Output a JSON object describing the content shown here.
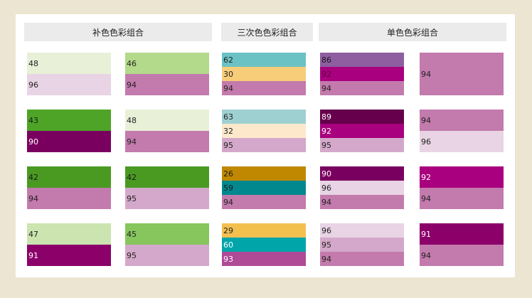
{
  "headers": [
    {
      "label": "补色色彩组合",
      "key": "complementary"
    },
    {
      "label": "三次色色彩组合",
      "key": "tertiary"
    },
    {
      "label": "单色色彩组合",
      "key": "monochrome"
    }
  ],
  "swatch_columns": [
    {
      "key": "c1",
      "rows": [
        [
          {
            "value": "48",
            "color": "#e8f0d8",
            "text": "#222222"
          },
          {
            "value": "96",
            "color": "#e8d4e4",
            "text": "#222222"
          }
        ],
        [
          {
            "value": "43",
            "color": "#4ea427",
            "text": "#1a1a1a"
          },
          {
            "value": "90",
            "color": "#7a0060",
            "text": "#ffffff"
          }
        ],
        [
          {
            "value": "42",
            "color": "#4a9a22",
            "text": "#1a1a1a"
          },
          {
            "value": "94",
            "color": "#c37aac",
            "text": "#222222"
          }
        ],
        [
          {
            "value": "47",
            "color": "#cbe4b0",
            "text": "#222222"
          },
          {
            "value": "91",
            "color": "#8c006a",
            "text": "#ffffff"
          }
        ]
      ]
    },
    {
      "key": "c2",
      "rows": [
        [
          {
            "value": "46",
            "color": "#b3d98a",
            "text": "#222222"
          },
          {
            "value": "94",
            "color": "#c37aac",
            "text": "#222222"
          }
        ],
        [
          {
            "value": "48",
            "color": "#e8f0d8",
            "text": "#222222"
          },
          {
            "value": "94",
            "color": "#c37aac",
            "text": "#222222"
          }
        ],
        [
          {
            "value": "42",
            "color": "#4a9a22",
            "text": "#1a1a1a"
          },
          {
            "value": "95",
            "color": "#d4a8ca",
            "text": "#222222"
          }
        ],
        [
          {
            "value": "45",
            "color": "#86c65c",
            "text": "#222222"
          },
          {
            "value": "95",
            "color": "#d4a8ca",
            "text": "#222222"
          }
        ]
      ]
    },
    {
      "key": "c3",
      "rows": [
        [
          {
            "value": "62",
            "color": "#6bc2c4",
            "text": "#222222"
          },
          {
            "value": "30",
            "color": "#f8cd7a",
            "text": "#222222"
          },
          {
            "value": "94",
            "color": "#c37aac",
            "text": "#222222"
          }
        ],
        [
          {
            "value": "63",
            "color": "#9ed0d2",
            "text": "#222222"
          },
          {
            "value": "32",
            "color": "#fde8cc",
            "text": "#222222"
          },
          {
            "value": "95",
            "color": "#d4a8ca",
            "text": "#222222"
          }
        ],
        [
          {
            "value": "26",
            "color": "#c08800",
            "text": "#1a1a1a"
          },
          {
            "value": "59",
            "color": "#00888e",
            "text": "#1a1a1a"
          },
          {
            "value": "94",
            "color": "#c37aac",
            "text": "#222222"
          }
        ],
        [
          {
            "value": "29",
            "color": "#f3c050",
            "text": "#222222"
          },
          {
            "value": "60",
            "color": "#00a5aa",
            "text": "#ffffff"
          },
          {
            "value": "93",
            "color": "#ae4a96",
            "text": "#ffffff"
          }
        ]
      ]
    },
    {
      "key": "c4",
      "rows": [
        [
          {
            "value": "86",
            "color": "#8e5ea0",
            "text": "#1a1a1a"
          },
          {
            "value": "92",
            "color": "#a8007e",
            "text": "#5a0040"
          },
          {
            "value": "94",
            "color": "#c37aac",
            "text": "#222222"
          }
        ],
        [
          {
            "value": "89",
            "color": "#66004c",
            "text": "#ffffff"
          },
          {
            "value": "92",
            "color": "#a8007e",
            "text": "#ffffff"
          },
          {
            "value": "95",
            "color": "#d4a8ca",
            "text": "#222222"
          }
        ],
        [
          {
            "value": "90",
            "color": "#7a0060",
            "text": "#ffffff"
          },
          {
            "value": "96",
            "color": "#e8d4e4",
            "text": "#222222"
          },
          {
            "value": "94",
            "color": "#c37aac",
            "text": "#222222"
          }
        ],
        [
          {
            "value": "96",
            "color": "#e8d4e4",
            "text": "#222222"
          },
          {
            "value": "95",
            "color": "#d4a8ca",
            "text": "#222222"
          },
          {
            "value": "94",
            "color": "#c37aac",
            "text": "#222222"
          }
        ]
      ]
    },
    {
      "key": "c5",
      "rows": [
        [
          {
            "value": "94",
            "color": "#c37aac",
            "text": "#222222"
          }
        ],
        [
          {
            "value": "94",
            "color": "#c37aac",
            "text": "#222222"
          },
          {
            "value": "96",
            "color": "#e8d4e4",
            "text": "#222222"
          }
        ],
        [
          {
            "value": "92",
            "color": "#a8007e",
            "text": "#ffffff"
          },
          {
            "value": "94",
            "color": "#c37aac",
            "text": "#222222"
          }
        ],
        [
          {
            "value": "91",
            "color": "#8c006a",
            "text": "#ffffff"
          },
          {
            "value": "94",
            "color": "#c37aac",
            "text": "#222222"
          }
        ]
      ]
    }
  ]
}
